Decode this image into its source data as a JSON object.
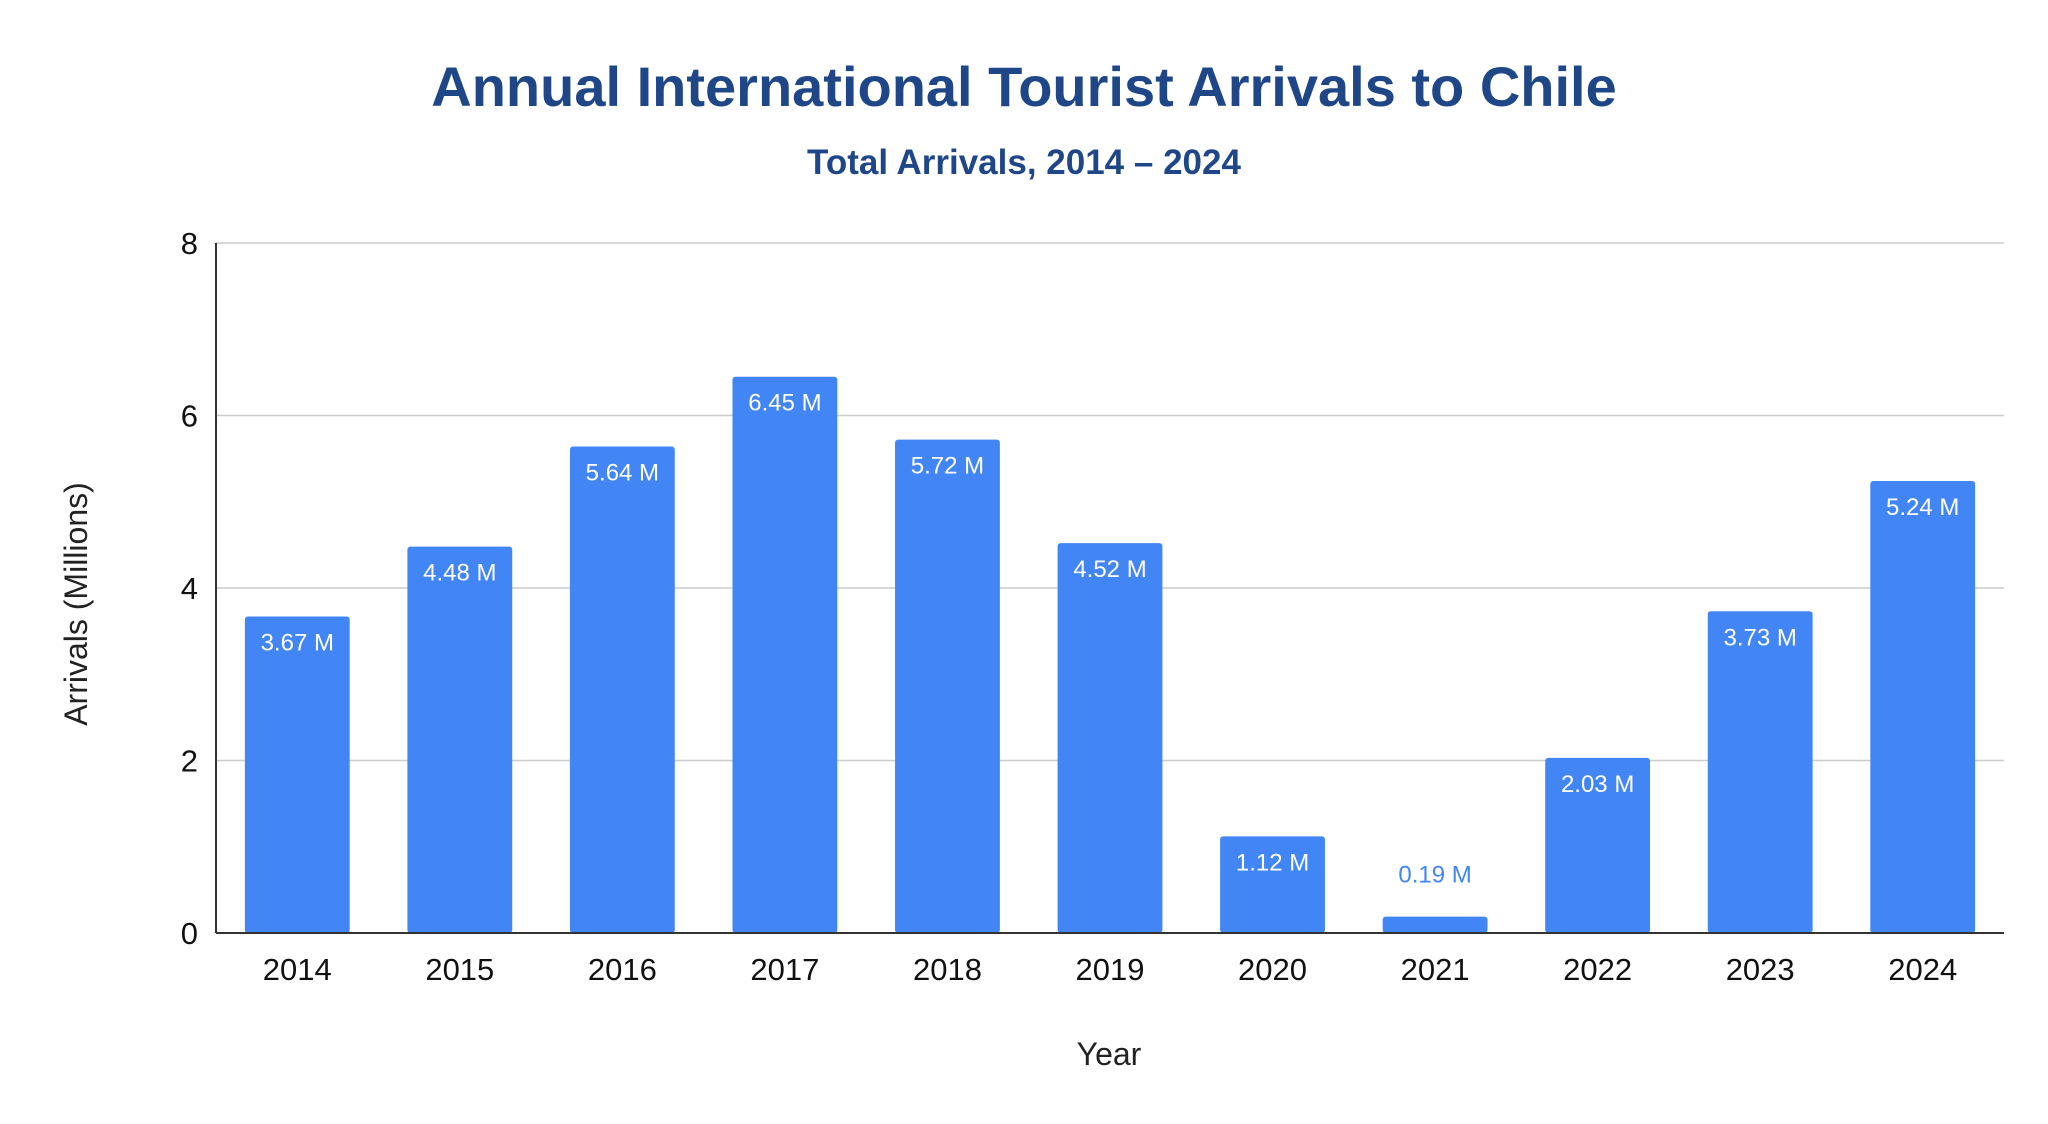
{
  "chart_data": {
    "type": "bar",
    "title": "Annual International Tourist Arrivals to Chile",
    "subtitle": "Total Arrivals, 2014 – 2024",
    "xlabel": "Year",
    "ylabel": "Arrivals (Millions)",
    "categories": [
      "2014",
      "2015",
      "2016",
      "2017",
      "2018",
      "2019",
      "2020",
      "2021",
      "2022",
      "2023",
      "2024"
    ],
    "values": [
      3.67,
      4.48,
      5.64,
      6.45,
      5.72,
      4.52,
      1.12,
      0.19,
      2.03,
      3.73,
      5.24
    ],
    "data_labels": [
      "3.67 M",
      "4.48 M",
      "5.64 M",
      "6.45 M",
      "5.72 M",
      "4.52 M",
      "1.12 M",
      "0.19 M",
      "2.03 M",
      "3.73 M",
      "5.24 M"
    ],
    "ylim": [
      0,
      8
    ],
    "yticks": [
      0,
      2,
      4,
      6,
      8
    ],
    "grid": true,
    "legend": "none",
    "colors": {
      "bar": "#4285f4",
      "title": "#1f4788",
      "grid": "#cccccc",
      "axis": "#333333",
      "label_inside": "#ffffff",
      "label_outside": "#4285f4"
    }
  }
}
